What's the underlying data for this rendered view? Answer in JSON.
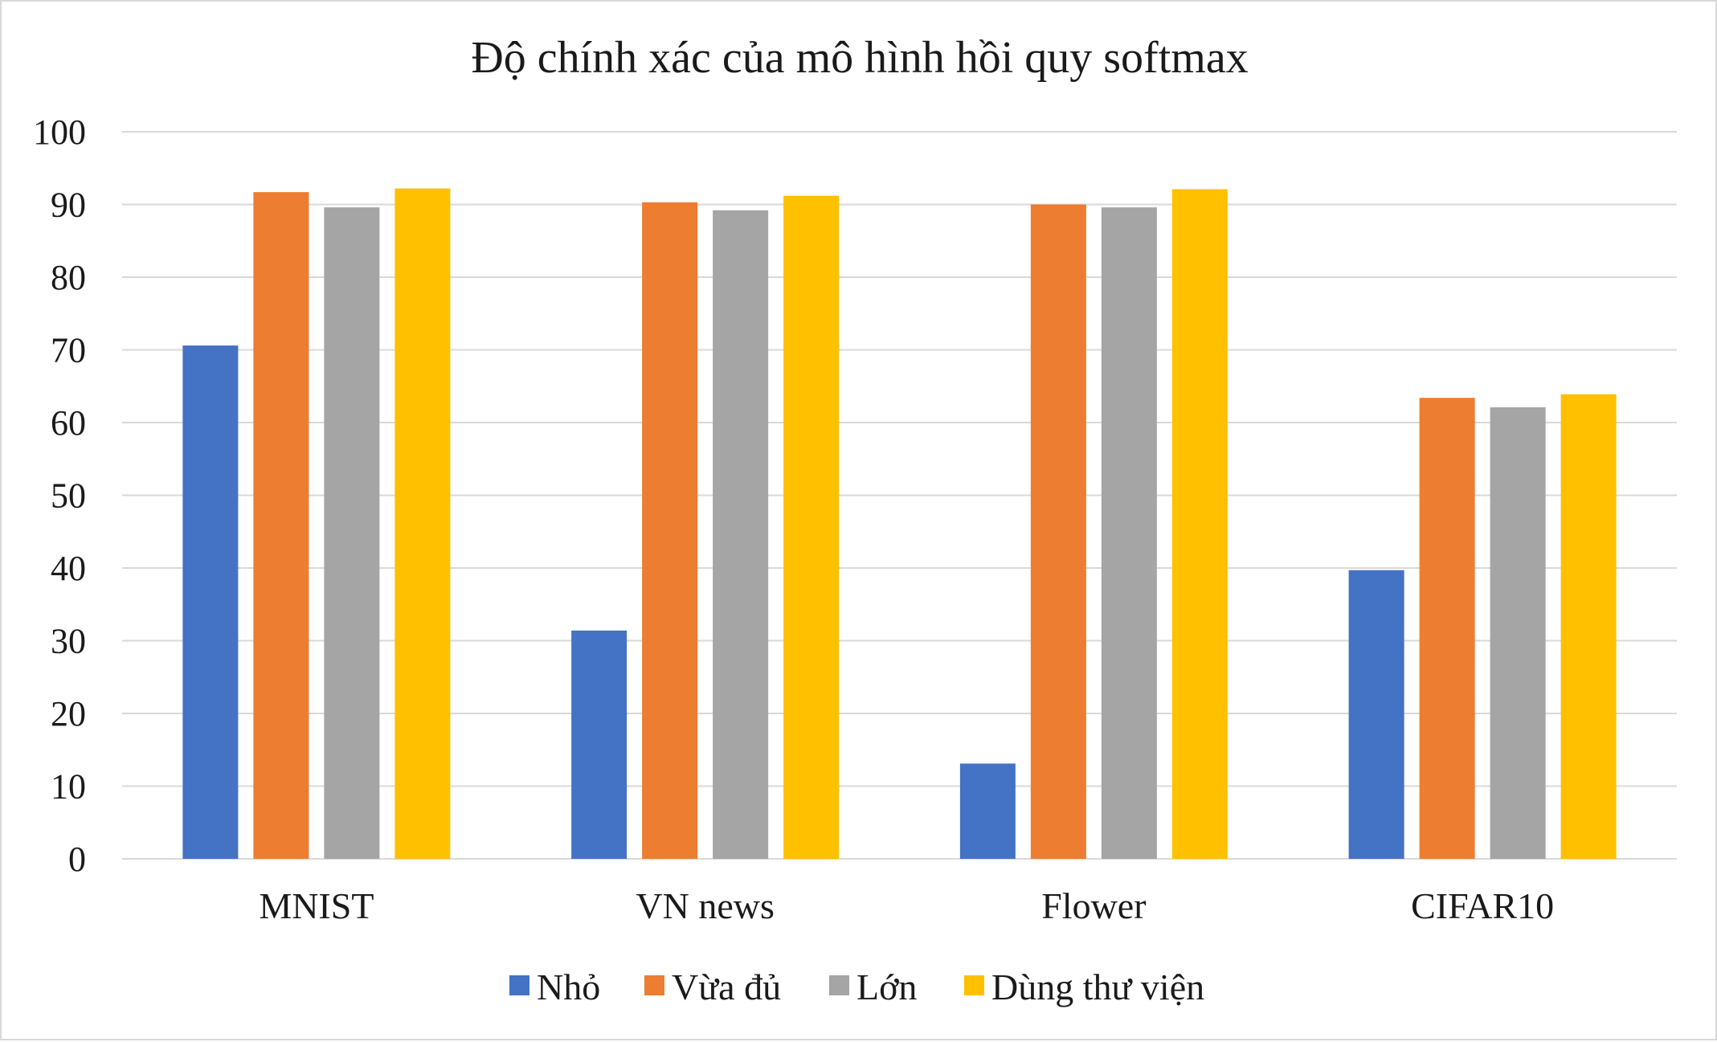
{
  "chart_data": {
    "type": "bar",
    "title": "Độ chính xác của mô hình hồi quy softmax",
    "xlabel": "",
    "ylabel": "",
    "ylim": [
      0,
      100
    ],
    "yticks": [
      0,
      10,
      20,
      30,
      40,
      50,
      60,
      70,
      80,
      90,
      100
    ],
    "grid": true,
    "legend_position": "bottom",
    "categories": [
      "MNIST",
      "VN news",
      "Flower",
      "CIFAR10"
    ],
    "series": [
      {
        "name": "Nhỏ",
        "color": "#4472C4",
        "values": [
          70.6,
          31.4,
          13.1,
          39.7
        ]
      },
      {
        "name": "Vừa đủ",
        "color": "#ED7D31",
        "values": [
          91.7,
          90.3,
          90.0,
          63.4
        ]
      },
      {
        "name": "Lớn",
        "color": "#A5A5A5",
        "values": [
          89.6,
          89.2,
          89.6,
          62.1
        ]
      },
      {
        "name": "Dùng thư viện",
        "color": "#FFC000",
        "values": [
          92.2,
          91.2,
          92.1,
          63.9
        ]
      }
    ]
  }
}
